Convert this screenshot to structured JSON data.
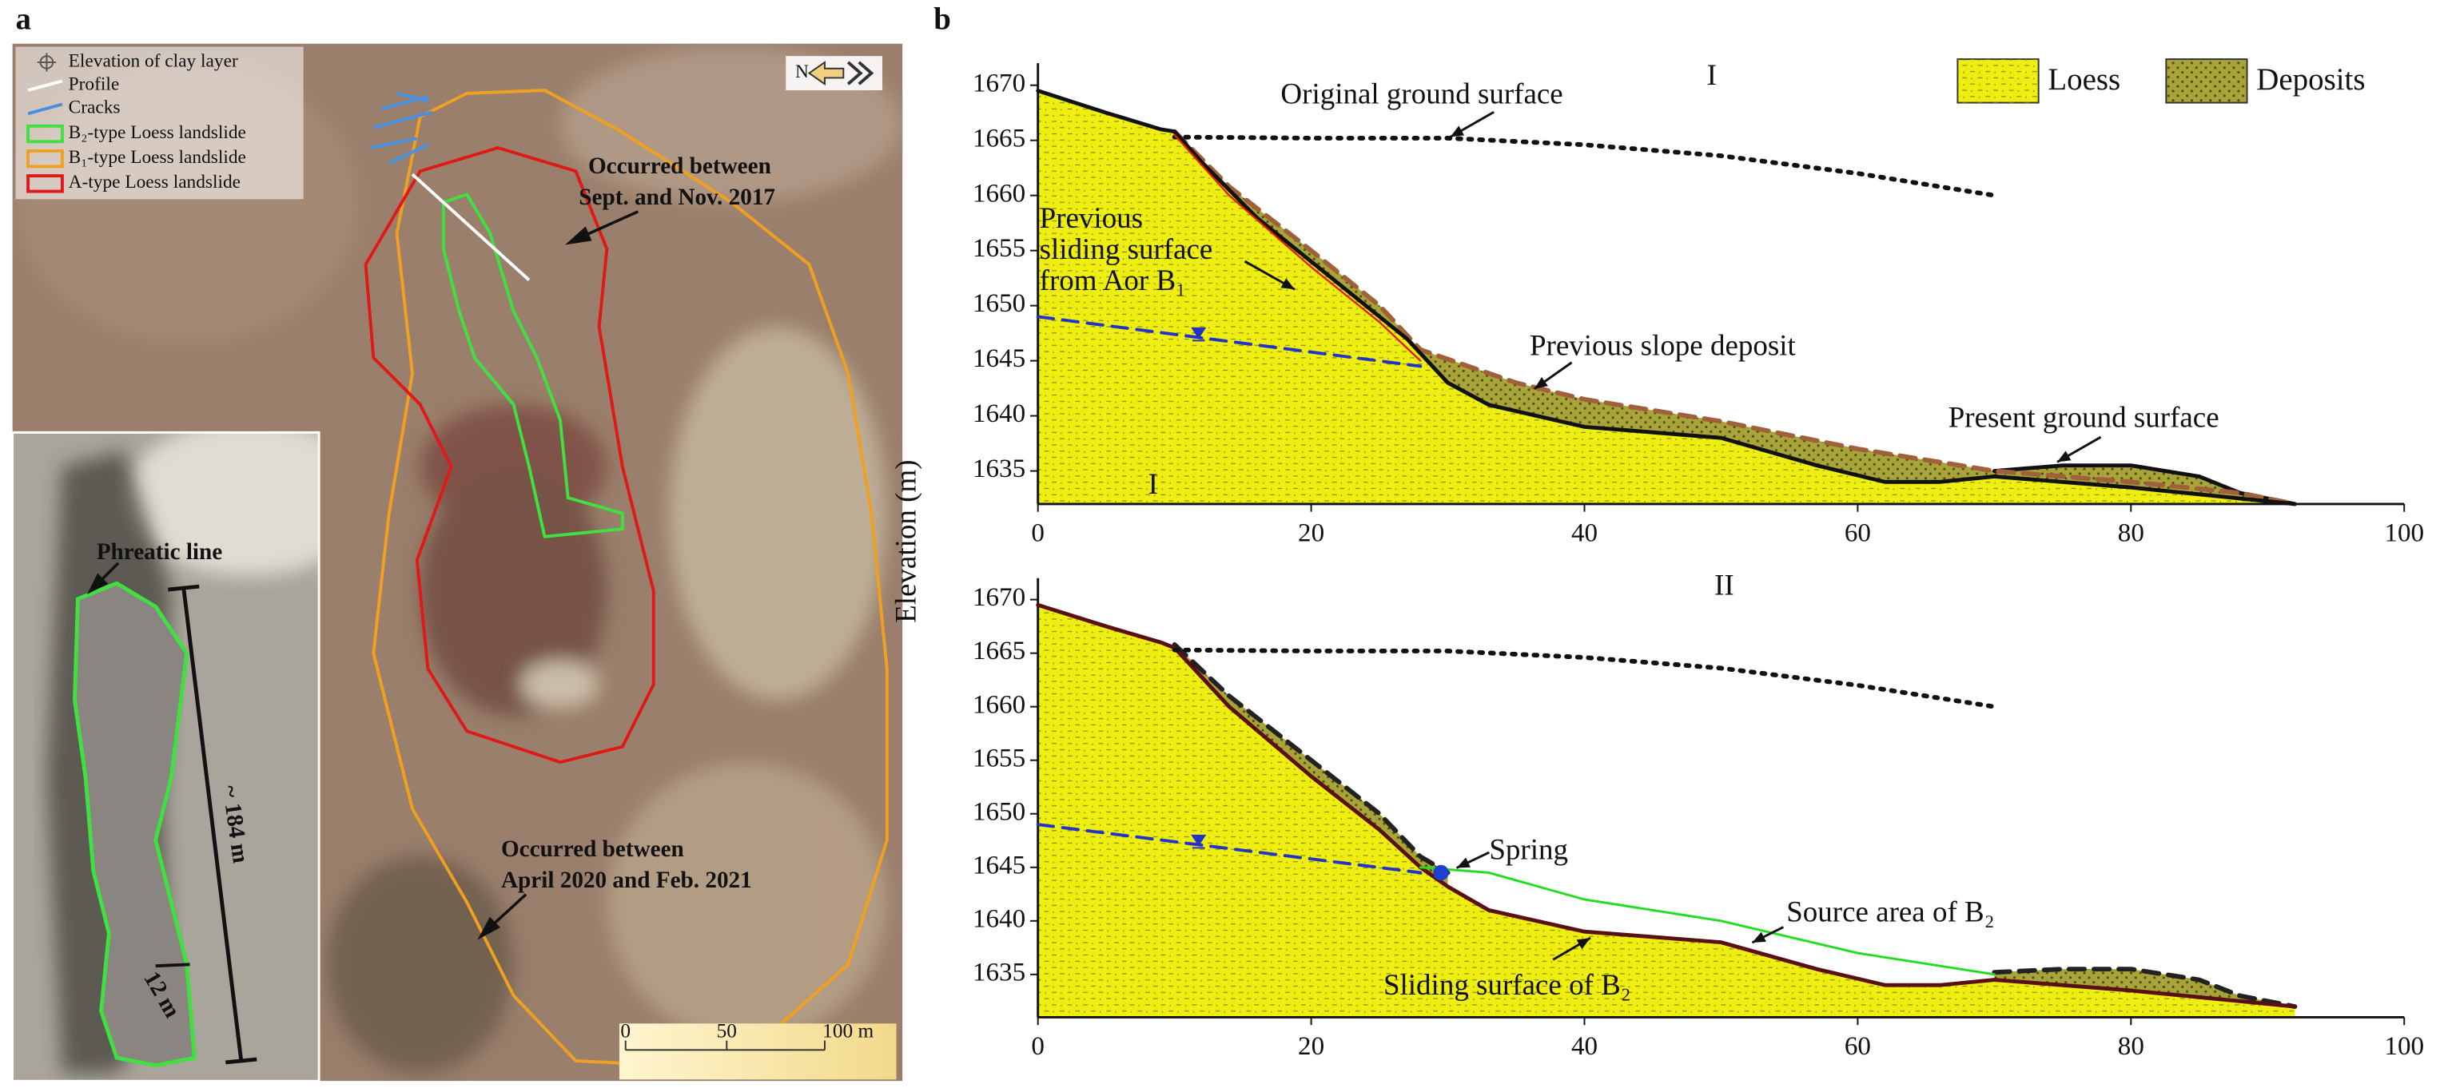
{
  "panel_a": {
    "label": "a",
    "legend": [
      "Elevation of clay layer",
      "Profile",
      "Cracks",
      "B₂-type Loess landslide",
      "B₁-type Loess landslide",
      "A-type Loess landslide"
    ],
    "annotations": [
      {
        "text": [
          "Occurred between",
          "Sept. and Nov. 2017"
        ]
      },
      {
        "text": [
          "Occurred between",
          "April 2020 and Feb. 2021"
        ]
      },
      {
        "text": [
          "Phreatic line"
        ]
      },
      {
        "text": [
          "~ 184 m"
        ]
      },
      {
        "text": [
          "12 m"
        ]
      }
    ],
    "scale": [
      "0",
      "50",
      "100 m"
    ],
    "north": "N"
  },
  "panel_b": {
    "label": "b"
  },
  "chart_data": [
    {
      "type": "line",
      "ylabel": "Elevation (m)",
      "xlim": [
        0,
        100
      ],
      "ylim": [
        1632,
        1672
      ],
      "xticks": [
        0,
        20,
        40,
        60,
        80,
        100
      ],
      "yticks": [
        1635,
        1640,
        1645,
        1650,
        1655,
        1660,
        1665,
        1670
      ],
      "legend": [
        {
          "label": "Loess",
          "color": "#eeee10"
        },
        {
          "label": "Deposits",
          "color": "#a8a43a"
        }
      ],
      "series": [
        {
          "x": [
            70,
            75,
            80,
            85,
            88,
            92
          ],
          "values": [
            1635,
            1635.5,
            1635.5,
            1634.5,
            1633,
            1632
          ],
          "color": "#111111",
          "width": 2.5,
          "fill": "#a8a43a"
        },
        {
          "x": [
            10,
            14,
            20,
            25,
            28,
            35,
            40,
            50,
            60,
            70,
            80,
            88,
            92
          ],
          "values": [
            1665.8,
            1660.8,
            1655,
            1650,
            1646,
            1643,
            1641.5,
            1639.5,
            1637,
            1635,
            1634,
            1633,
            1632
          ],
          "color": "#a0603a",
          "width": 3,
          "dash": "dashed",
          "fill": "#a8a43a"
        },
        {
          "x": [
            0,
            5,
            9,
            10,
            12,
            16,
            20,
            24,
            27,
            30,
            33,
            40,
            50,
            57,
            62,
            66,
            70,
            80,
            88,
            92
          ],
          "values": [
            1669.5,
            1667.5,
            1666,
            1665.8,
            1663,
            1658,
            1654,
            1650,
            1647,
            1643,
            1641,
            1639,
            1638,
            1635.5,
            1634,
            1634,
            1634.5,
            1633.5,
            1632.5,
            1632
          ],
          "color": "#111111",
          "width": 2.5,
          "fill": "#eeee10"
        },
        {
          "x": [
            10,
            20,
            30,
            40,
            50,
            60,
            70
          ],
          "values": [
            1665.3,
            1665.2,
            1665.2,
            1664.6,
            1663.6,
            1662,
            1660
          ],
          "color": "#111111",
          "width": 3,
          "dash": "dotted"
        },
        {
          "x": [
            0,
            28
          ],
          "values": [
            1649,
            1644.5
          ],
          "color": "#2233cc",
          "width": 2,
          "dash": "dashed"
        },
        {
          "x": [
            10,
            14,
            20,
            25,
            28
          ],
          "values": [
            1665.5,
            1660,
            1653.5,
            1648.5,
            1645
          ],
          "color": "#e02010",
          "width": 1.2
        }
      ],
      "annotations": [
        {
          "text": [
            "I"
          ]
        },
        {
          "text": [
            "Original ground surface"
          ]
        },
        {
          "text": [
            "Previous",
            "sliding surface",
            "from Aor B₁"
          ]
        },
        {
          "text": [
            "Previous slope deposit"
          ]
        },
        {
          "text": [
            "Present ground surface"
          ]
        },
        {
          "text": [
            "I"
          ]
        }
      ]
    },
    {
      "type": "line",
      "xlim": [
        0,
        100
      ],
      "ylim": [
        1631,
        1672
      ],
      "xticks": [
        0,
        20,
        40,
        60,
        80,
        100
      ],
      "yticks": [
        1635,
        1640,
        1645,
        1650,
        1655,
        1660,
        1665,
        1670
      ],
      "series": [
        {
          "x": [
            70,
            75,
            80,
            85,
            88,
            92
          ],
          "values": [
            1635.2,
            1635.5,
            1635.5,
            1634.5,
            1633,
            1632
          ],
          "color": "#222222",
          "width": 3,
          "dash": "dashed",
          "fill": "#a8a43a"
        },
        {
          "x": [
            10,
            14,
            20,
            25,
            28,
            30
          ],
          "values": [
            1665.8,
            1661,
            1655,
            1650,
            1646,
            1644.5
          ],
          "color": "#222222",
          "width": 3,
          "dash": "dashed",
          "fill": "#a8a43a"
        },
        {
          "x": [
            0,
            5,
            9,
            10,
            14,
            20,
            25,
            28,
            30,
            33,
            40,
            50,
            57,
            62,
            66,
            70,
            80,
            88,
            92
          ],
          "values": [
            1669.5,
            1667.5,
            1666,
            1665.5,
            1660,
            1653.5,
            1648.5,
            1645,
            1643.2,
            1641,
            1639,
            1638,
            1635.5,
            1634,
            1634,
            1634.5,
            1633.5,
            1632.5,
            1632
          ],
          "color": "#5a1010",
          "width": 2.5,
          "fill": "#eeee10"
        },
        {
          "x": [
            28,
            33,
            40,
            50,
            60,
            70
          ],
          "values": [
            1645,
            1644.5,
            1642,
            1640,
            1637,
            1635
          ],
          "color": "#22dd22",
          "width": 1.5
        },
        {
          "x": [
            10,
            20,
            30,
            40,
            50,
            60,
            70
          ],
          "values": [
            1665.3,
            1665.2,
            1665.2,
            1664.6,
            1663.6,
            1662,
            1660
          ],
          "color": "#111111",
          "width": 3,
          "dash": "dotted"
        },
        {
          "x": [
            0,
            28
          ],
          "values": [
            1649,
            1644.5
          ],
          "color": "#2233cc",
          "width": 2,
          "dash": "dashed"
        }
      ],
      "spring": {
        "x": 29.5,
        "y": 1644.5,
        "color": "#1f3fd0"
      },
      "annotations": [
        {
          "text": [
            "II"
          ]
        },
        {
          "text": [
            "Spring"
          ]
        },
        {
          "text": [
            "Source area of B₂"
          ]
        },
        {
          "text": [
            "Sliding surface of B₂"
          ]
        }
      ]
    }
  ]
}
